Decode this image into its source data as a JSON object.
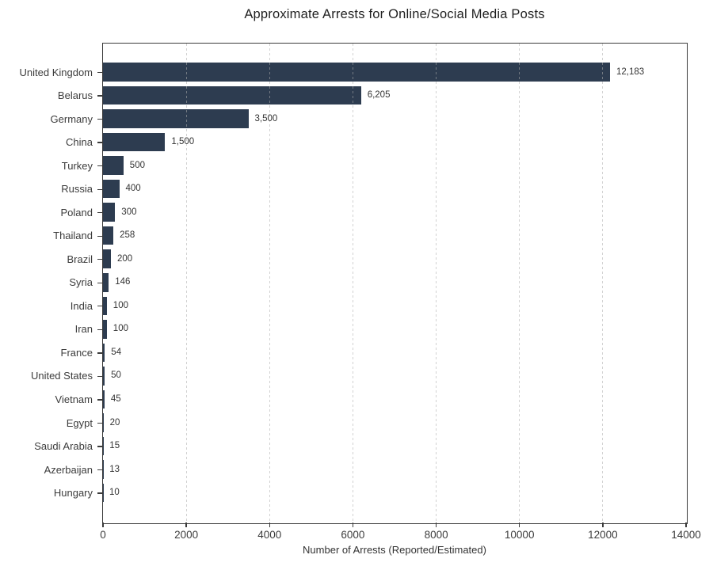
{
  "chart_data": {
    "type": "bar",
    "orientation": "horizontal",
    "title": "Approximate Arrests for Online/Social Media Posts",
    "xlabel": "Number of Arrests (Reported/Estimated)",
    "ylabel": "",
    "xlim": [
      0,
      14000
    ],
    "xticks": [
      0,
      2000,
      4000,
      6000,
      8000,
      10000,
      12000,
      14000
    ],
    "grid": true,
    "legend_position": "none",
    "categories": [
      "United Kingdom",
      "Belarus",
      "Germany",
      "China",
      "Turkey",
      "Russia",
      "Poland",
      "Thailand",
      "Brazil",
      "Syria",
      "India",
      "Iran",
      "France",
      "United States",
      "Vietnam",
      "Egypt",
      "Saudi Arabia",
      "Azerbaijan",
      "Hungary"
    ],
    "values": [
      12183,
      6205,
      3500,
      1500,
      500,
      400,
      300,
      258,
      200,
      146,
      100,
      100,
      54,
      50,
      45,
      20,
      15,
      13,
      10
    ],
    "value_labels": [
      "12,183",
      "6,205",
      "3,500",
      "1,500",
      "500",
      "400",
      "300",
      "258",
      "200",
      "146",
      "100",
      "100",
      "54",
      "50",
      "45",
      "20",
      "15",
      "13",
      "10"
    ],
    "colors": {
      "bar": "#2d3c50",
      "gridline": "#d5d5d5",
      "spine": "#3b3b3b",
      "text": "#3c3c3c"
    }
  }
}
